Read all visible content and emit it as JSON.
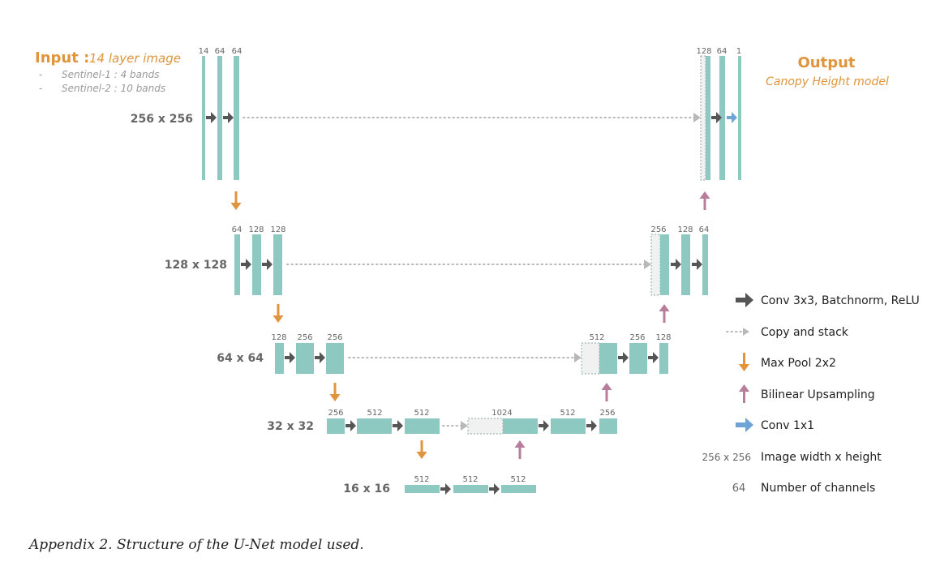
{
  "colors": {
    "block": "#8ec9c1",
    "block_stroke": "#6fb3aa",
    "conv": "#555555",
    "copy": "#b8b8b8",
    "pool": "#e0953c",
    "up": "#b97d9c",
    "conv1x1": "#6fa3d8",
    "accent_text": "#e0953c",
    "res_text": "#666666",
    "chan_text": "#666666",
    "ghost_fill": "#f1f1f1",
    "ghost_stroke": "#8aa8a3"
  },
  "input": {
    "title": "Input :",
    "subtitle": "14 layer image",
    "bullets": [
      {
        "dash": "-",
        "text": "Sentinel-1 : 4 bands"
      },
      {
        "dash": "-",
        "text": "Sentinel-2 : 10 bands"
      }
    ]
  },
  "output": {
    "title": "Output",
    "subtitle": "Canopy Height model"
  },
  "levels": [
    {
      "label": "256 x 256"
    },
    {
      "label": "128 x 128"
    },
    {
      "label": "64 x 64"
    },
    {
      "label": "32 x 32"
    },
    {
      "label": "16 x 16"
    }
  ],
  "channels": {
    "enc0": [
      "14",
      "64",
      "64"
    ],
    "dec0": [
      "128",
      "64",
      "1"
    ],
    "enc1": [
      "64",
      "128",
      "128"
    ],
    "dec1": [
      "256",
      "128",
      "64"
    ],
    "enc2": [
      "128",
      "256",
      "256"
    ],
    "dec2": [
      "512",
      "256",
      "128"
    ],
    "enc3": [
      "256",
      "512",
      "512"
    ],
    "dec3": [
      "1024",
      "512",
      "256"
    ],
    "bott": [
      "512",
      "512",
      "512"
    ]
  },
  "legend": [
    {
      "kind": "conv",
      "text": "Conv 3x3, Batchnorm, ReLU"
    },
    {
      "kind": "copy",
      "text": "Copy and stack"
    },
    {
      "kind": "pool",
      "text": "Max Pool 2x2"
    },
    {
      "kind": "up",
      "text": "Bilinear Upsampling"
    },
    {
      "kind": "conv1x1",
      "text": "Conv 1x1"
    },
    {
      "kind": "res",
      "sample": "256 x 256",
      "text": "Image width x height"
    },
    {
      "kind": "chan",
      "sample": "64",
      "text": "Number of channels"
    }
  ],
  "caption": "Appendix 2. Structure of the U-Net model used."
}
